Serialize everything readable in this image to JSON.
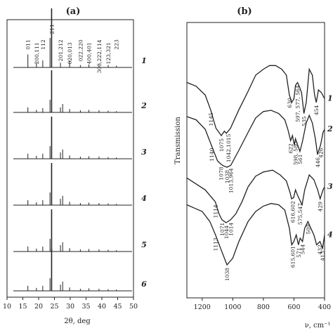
{
  "chart_data": [
    {
      "type": "line",
      "panel_label": "(a)",
      "xlabel": "2θ, deg",
      "xlim": [
        10,
        50
      ],
      "x_ticks": [
        "10",
        "15",
        "20",
        "25",
        "30",
        "35",
        "40",
        "45",
        "50"
      ],
      "grid": false,
      "peak_labels": [
        {
          "label": "011",
          "x": 16.6
        },
        {
          "label": "200,111",
          "x": 19.3
        },
        {
          "label": "112",
          "x": 21.3
        },
        {
          "label": "211",
          "x": 24.1
        },
        {
          "label": "201,212",
          "x": 26.9
        },
        {
          "label": "020,013",
          "x": 29.8
        },
        {
          "label": "022,220",
          "x": 33.2
        },
        {
          "label": "400,401",
          "x": 35.9
        },
        {
          "label": "303,222,114",
          "x": 39.1
        },
        {
          "label": "123,321",
          "x": 42.0
        },
        {
          "label": "223",
          "x": 44.6
        }
      ],
      "series": [
        {
          "label": "1",
          "peaks": [
            [
              16.6,
              0.22
            ],
            [
              19.3,
              0.08
            ],
            [
              21.3,
              0.12
            ],
            [
              23.6,
              0.5
            ],
            [
              24.1,
              1.0
            ],
            [
              26.9,
              0.08
            ],
            [
              29.8,
              0.12
            ],
            [
              33.2,
              0.04
            ],
            [
              35.9,
              0.05
            ],
            [
              39.1,
              0.05
            ],
            [
              42.0,
              0.04
            ],
            [
              44.6,
              0.03
            ]
          ]
        },
        {
          "label": "2",
          "peaks": [
            [
              16.6,
              0.12
            ],
            [
              19.3,
              0.06
            ],
            [
              21.3,
              0.1
            ],
            [
              23.6,
              0.3
            ],
            [
              24.1,
              1.0
            ],
            [
              26.9,
              0.12
            ],
            [
              27.6,
              0.2
            ],
            [
              29.8,
              0.08
            ],
            [
              33.2,
              0.05
            ],
            [
              35.9,
              0.06
            ],
            [
              39.1,
              0.05
            ],
            [
              42.0,
              0.04
            ],
            [
              44.6,
              0.03
            ]
          ]
        },
        {
          "label": "3",
          "peaks": [
            [
              16.6,
              0.12
            ],
            [
              19.3,
              0.07
            ],
            [
              21.3,
              0.12
            ],
            [
              23.6,
              0.3
            ],
            [
              24.1,
              1.0
            ],
            [
              26.9,
              0.15
            ],
            [
              27.6,
              0.22
            ],
            [
              29.8,
              0.08
            ],
            [
              33.2,
              0.05
            ],
            [
              35.9,
              0.06
            ],
            [
              39.1,
              0.05
            ],
            [
              42.0,
              0.04
            ],
            [
              44.6,
              0.03
            ]
          ]
        },
        {
          "label": "4",
          "peaks": [
            [
              16.6,
              0.12
            ],
            [
              19.3,
              0.07
            ],
            [
              21.3,
              0.12
            ],
            [
              23.6,
              0.3
            ],
            [
              24.1,
              1.0
            ],
            [
              26.9,
              0.15
            ],
            [
              27.6,
              0.22
            ],
            [
              29.8,
              0.08
            ],
            [
              33.2,
              0.05
            ],
            [
              35.9,
              0.06
            ],
            [
              39.1,
              0.05
            ],
            [
              42.0,
              0.04
            ],
            [
              44.6,
              0.03
            ]
          ]
        },
        {
          "label": "5",
          "peaks": [
            [
              16.6,
              0.12
            ],
            [
              19.3,
              0.07
            ],
            [
              21.3,
              0.12
            ],
            [
              23.6,
              0.3
            ],
            [
              24.1,
              1.0
            ],
            [
              26.9,
              0.15
            ],
            [
              27.6,
              0.22
            ],
            [
              29.8,
              0.08
            ],
            [
              33.2,
              0.05
            ],
            [
              35.9,
              0.06
            ],
            [
              39.1,
              0.05
            ],
            [
              42.0,
              0.04
            ],
            [
              44.6,
              0.03
            ]
          ]
        },
        {
          "label": "6",
          "peaks": [
            [
              16.6,
              0.12
            ],
            [
              19.3,
              0.07
            ],
            [
              21.3,
              0.12
            ],
            [
              23.6,
              0.3
            ],
            [
              24.1,
              1.0
            ],
            [
              26.9,
              0.15
            ],
            [
              27.6,
              0.22
            ],
            [
              29.8,
              0.08
            ],
            [
              33.2,
              0.05
            ],
            [
              35.9,
              0.06
            ],
            [
              39.1,
              0.05
            ],
            [
              42.0,
              0.04
            ],
            [
              44.6,
              0.03
            ]
          ]
        }
      ]
    },
    {
      "type": "line",
      "panel_label": "(b)",
      "xlabel": "ν, cm⁻¹",
      "ylabel": "Transmission",
      "xlim": [
        1300,
        400
      ],
      "x_ticks": [
        "1200",
        "1000",
        "800",
        "600",
        "400"
      ],
      "grid": false,
      "series": [
        {
          "label": "1",
          "points": [
            [
              1300,
              0.72
            ],
            [
              1240,
              0.67
            ],
            [
              1180,
              0.55
            ],
            [
              1145,
              0.35
            ],
            [
              1110,
              0.1
            ],
            [
              1075,
              0.0
            ],
            [
              1055,
              0.06
            ],
            [
              1042,
              0.03
            ],
            [
              1015,
              0.1
            ],
            [
              960,
              0.35
            ],
            [
              900,
              0.6
            ],
            [
              850,
              0.82
            ],
            [
              800,
              0.9
            ],
            [
              760,
              0.95
            ],
            [
              720,
              0.95
            ],
            [
              680,
              0.9
            ],
            [
              650,
              0.82
            ],
            [
              630,
              0.55
            ],
            [
              615,
              0.45
            ],
            [
              600,
              0.5
            ],
            [
              590,
              0.68
            ],
            [
              577,
              0.72
            ],
            [
              564,
              0.66
            ],
            [
              550,
              0.58
            ],
            [
              535,
              0.3
            ],
            [
              520,
              0.45
            ],
            [
              500,
              0.9
            ],
            [
              480,
              0.82
            ],
            [
              465,
              0.55
            ],
            [
              454,
              0.45
            ],
            [
              440,
              0.62
            ],
            [
              420,
              0.58
            ],
            [
              400,
              0.5
            ]
          ],
          "annotations": [
            {
              "label": "1145",
              "x": 1145
            },
            {
              "label": "1075",
              "x": 1075
            },
            {
              "label": "1042,1015",
              "x": 1030
            },
            {
              "label": "630",
              "x": 630
            },
            {
              "label": "597, 577, 564",
              "x": 577
            },
            {
              "label": "535",
              "x": 535
            },
            {
              "label": "454",
              "x": 454
            }
          ]
        },
        {
          "label": "2",
          "points": [
            [
              1300,
              0.8
            ],
            [
              1240,
              0.75
            ],
            [
              1180,
              0.6
            ],
            [
              1140,
              0.35
            ],
            [
              1100,
              0.1
            ],
            [
              1078,
              0.05
            ],
            [
              1060,
              0.02
            ],
            [
              1038,
              0.0
            ],
            [
              1013,
              0.03
            ],
            [
              964,
              0.25
            ],
            [
              900,
              0.55
            ],
            [
              850,
              0.78
            ],
            [
              800,
              0.88
            ],
            [
              750,
              0.9
            ],
            [
              700,
              0.85
            ],
            [
              660,
              0.75
            ],
            [
              640,
              0.6
            ],
            [
              622,
              0.42
            ],
            [
              610,
              0.5
            ],
            [
              598,
              0.35
            ],
            [
              590,
              0.45
            ],
            [
              580,
              0.38
            ],
            [
              561,
              0.25
            ],
            [
              545,
              0.4
            ],
            [
              520,
              0.7
            ],
            [
              500,
              0.82
            ],
            [
              480,
              0.7
            ],
            [
              460,
              0.45
            ],
            [
              446,
              0.2
            ],
            [
              440,
              0.25
            ],
            [
              426,
              0.35
            ],
            [
              410,
              0.55
            ],
            [
              400,
              0.6
            ]
          ],
          "annotations": [
            {
              "label": "1140",
              "x": 1140
            },
            {
              "label": "1078",
              "x": 1078
            },
            {
              "label": "1013,964",
              "x": 1013
            },
            {
              "label": "1038",
              "x": 1038
            },
            {
              "label": "622",
              "x": 622
            },
            {
              "label": "598, 580",
              "x": 590
            },
            {
              "label": "561",
              "x": 561
            },
            {
              "label": "446",
              "x": 446
            },
            {
              "label": "426",
              "x": 426
            }
          ]
        },
        {
          "label": "3",
          "points": [
            [
              1300,
              0.75
            ],
            [
              1240,
              0.65
            ],
            [
              1180,
              0.55
            ],
            [
              1114,
              0.35
            ],
            [
              1090,
              0.15
            ],
            [
              1071,
              0.05
            ],
            [
              1044,
              0.0
            ],
            [
              1014,
              0.05
            ],
            [
              980,
              0.15
            ],
            [
              940,
              0.35
            ],
            [
              900,
              0.6
            ],
            [
              850,
              0.78
            ],
            [
              800,
              0.85
            ],
            [
              740,
              0.88
            ],
            [
              690,
              0.8
            ],
            [
              650,
              0.7
            ],
            [
              625,
              0.5
            ],
            [
              616,
              0.4
            ],
            [
              602,
              0.42
            ],
            [
              590,
              0.55
            ],
            [
              575,
              0.45
            ],
            [
              547,
              0.3
            ],
            [
              530,
              0.55
            ],
            [
              500,
              0.8
            ],
            [
              470,
              0.72
            ],
            [
              445,
              0.55
            ],
            [
              429,
              0.4
            ],
            [
              410,
              0.55
            ],
            [
              400,
              0.6
            ]
          ],
          "annotations": [
            {
              "label": "1114",
              "x": 1114
            },
            {
              "label": "1071",
              "x": 1071
            },
            {
              "label": "1044",
              "x": 1044
            },
            {
              "label": "1014",
              "x": 1014
            },
            {
              "label": "616,602",
              "x": 609
            },
            {
              "label": "575,547",
              "x": 561
            },
            {
              "label": "429",
              "x": 429
            }
          ]
        },
        {
          "label": "4",
          "points": [
            [
              1300,
              0.9
            ],
            [
              1250,
              0.85
            ],
            [
              1200,
              0.8
            ],
            [
              1150,
              0.65
            ],
            [
              1113,
              0.45
            ],
            [
              1080,
              0.25
            ],
            [
              1038,
              0.0
            ],
            [
              1000,
              0.1
            ],
            [
              960,
              0.35
            ],
            [
              900,
              0.65
            ],
            [
              850,
              0.8
            ],
            [
              800,
              0.88
            ],
            [
              750,
              0.92
            ],
            [
              700,
              0.9
            ],
            [
              660,
              0.82
            ],
            [
              630,
              0.55
            ],
            [
              615,
              0.3
            ],
            [
              601,
              0.35
            ],
            [
              585,
              0.45
            ],
            [
              571,
              0.3
            ],
            [
              560,
              0.4
            ],
            [
              544,
              0.35
            ],
            [
              530,
              0.55
            ],
            [
              509,
              0.65
            ],
            [
              490,
              0.55
            ],
            [
              470,
              0.45
            ],
            [
              452,
              0.3
            ],
            [
              430,
              0.35
            ],
            [
              413,
              0.25
            ],
            [
              400,
              0.45
            ]
          ],
          "annotations": [
            {
              "label": "1113",
              "x": 1113
            },
            {
              "label": "1038",
              "x": 1038
            },
            {
              "label": "615,601",
              "x": 608
            },
            {
              "label": "571",
              "x": 571
            },
            {
              "label": "544",
              "x": 544
            },
            {
              "label": "509",
              "x": 509
            },
            {
              "label": "432",
              "x": 432
            },
            {
              "label": "413",
              "x": 413
            }
          ]
        }
      ]
    }
  ]
}
